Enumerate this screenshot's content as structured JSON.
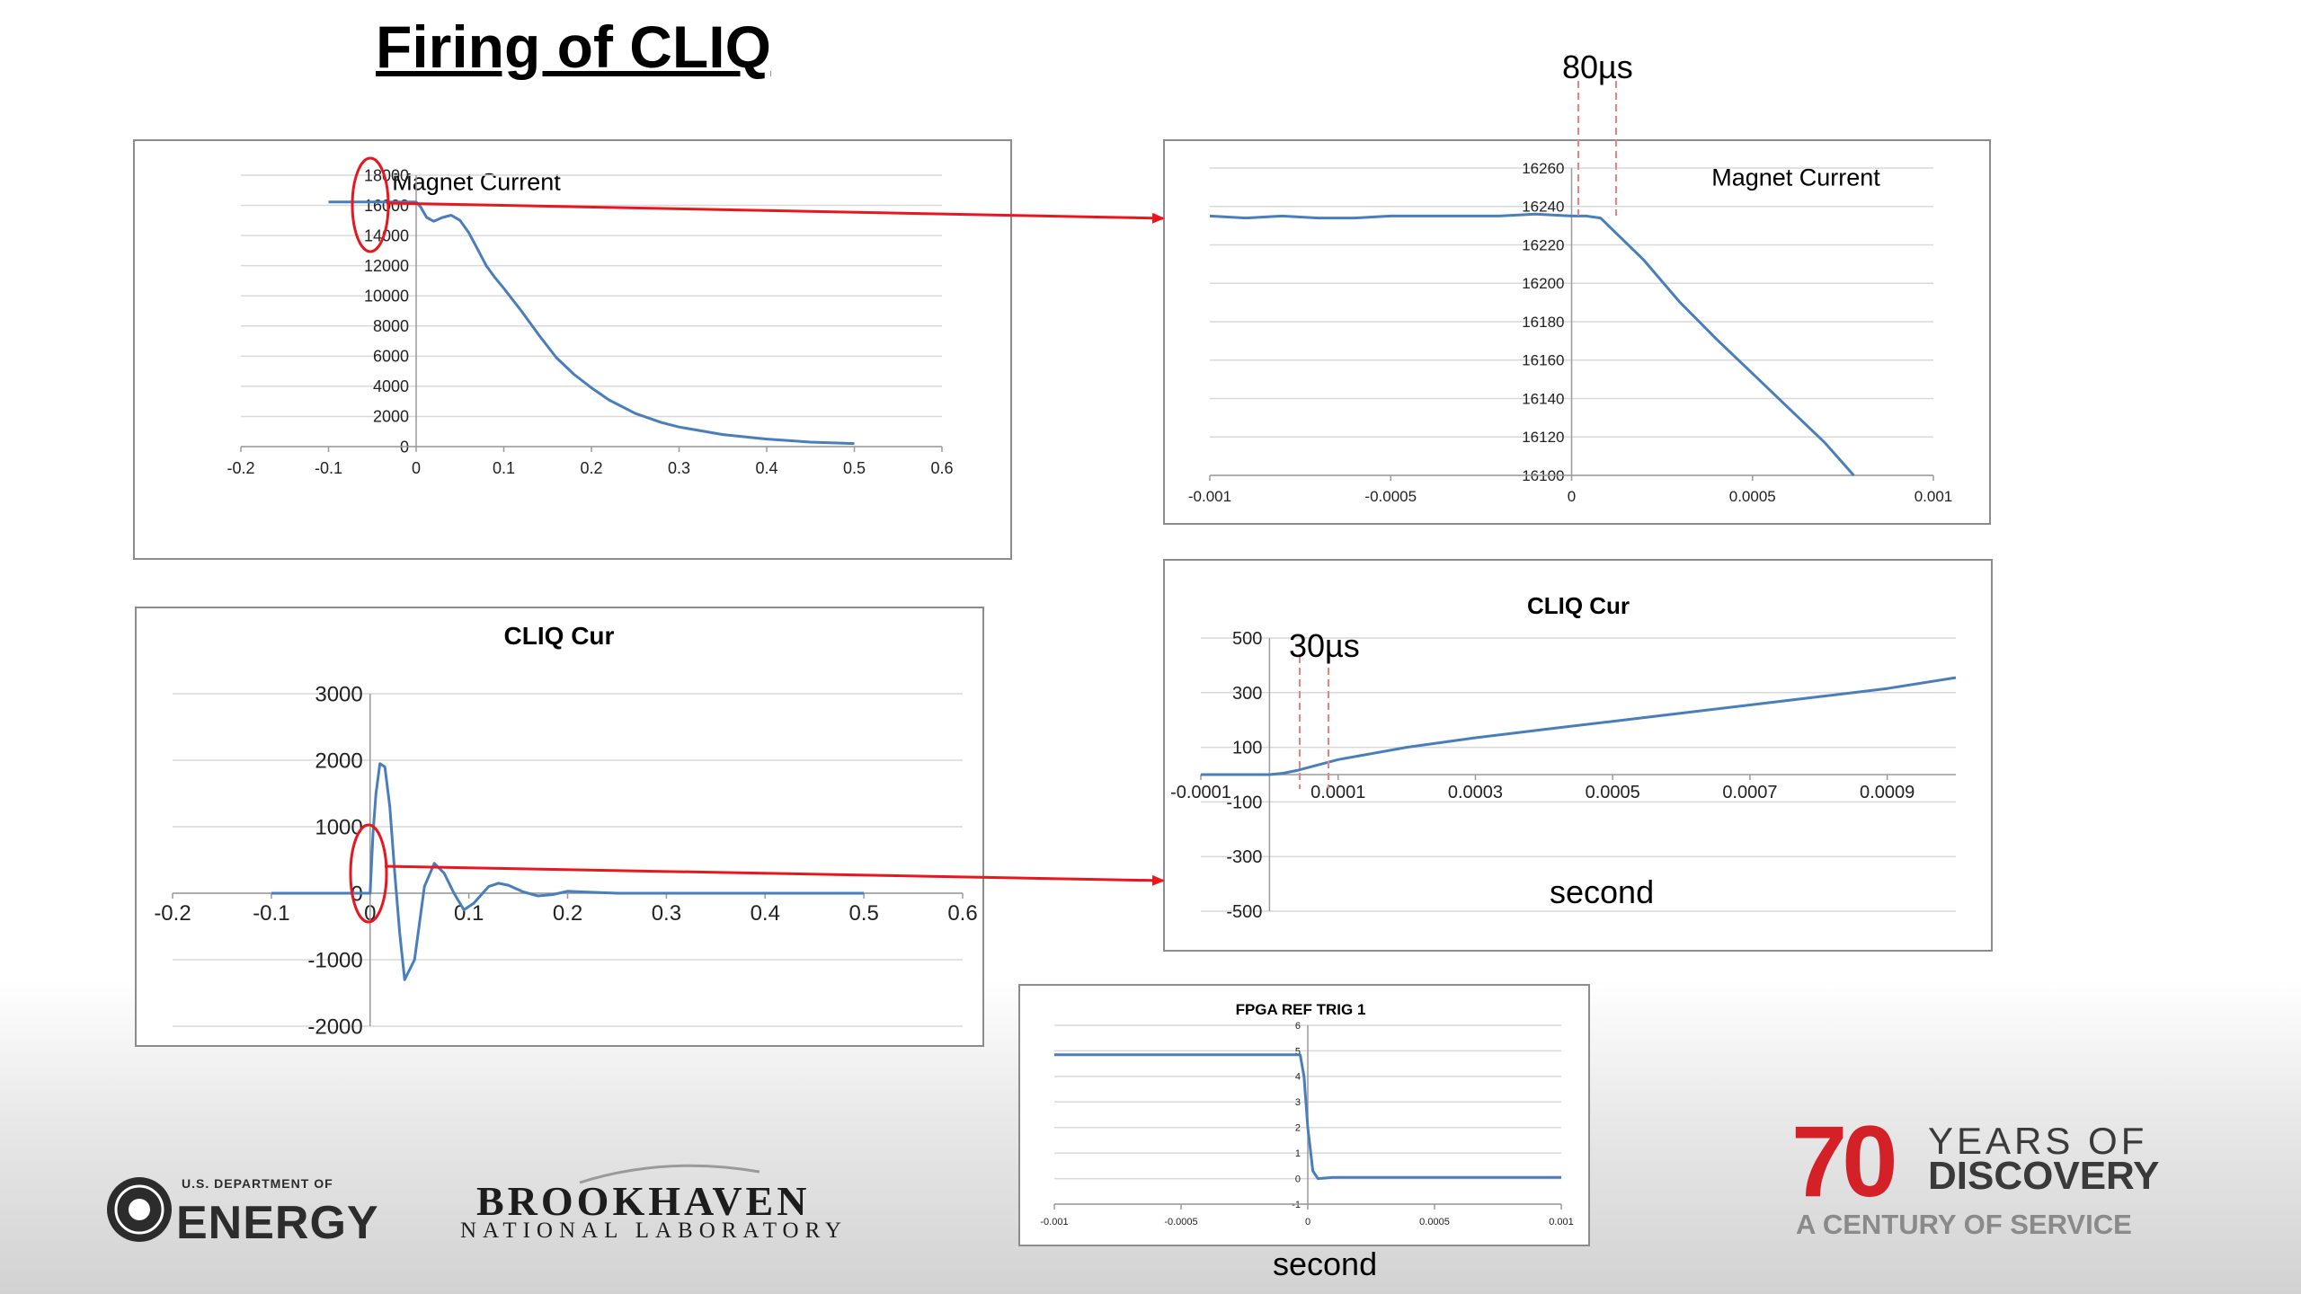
{
  "slide": {
    "title": "Firing of CLIQ",
    "annotation_80us": "80µs",
    "annotation_30us": "30µs",
    "second_label_cliq": "second",
    "second_label_fpga": "second"
  },
  "logos": {
    "doe_small": "U.S. DEPARTMENT OF",
    "doe_main": "ENERGY",
    "bnl_main": "BROOKHAVEN",
    "bnl_sub": "NATIONAL LABORATORY",
    "anniv_number": "70",
    "anniv_line1": "YEARS OF",
    "anniv_line2": "DISCOVERY",
    "anniv_line3": "A CENTURY OF SERVICE"
  },
  "colors": {
    "series": "#4a7ebb",
    "annotation_red": "#e8171f",
    "grid": "#d9d9d9"
  },
  "chart_data": [
    {
      "id": "magnet-current-full",
      "type": "line",
      "title": "Magnet Current",
      "xlim": [
        -0.2,
        0.6
      ],
      "ylim": [
        0,
        18000
      ],
      "x_ticks": [
        -0.2,
        -0.1,
        0,
        0.1,
        0.2,
        0.3,
        0.4,
        0.5,
        0.6
      ],
      "x_tick_labels": [
        "-0.2",
        "-0.1",
        "0",
        "0.1",
        "0.2",
        "0.3",
        "0.4",
        "0.5",
        "0.6"
      ],
      "y_ticks": [
        0,
        2000,
        4000,
        6000,
        8000,
        10000,
        12000,
        14000,
        16000,
        18000
      ],
      "y_tick_labels": [
        "0",
        "2000",
        "4000",
        "6000",
        "8000",
        "10000",
        "12000",
        "14000",
        "16000",
        "18000"
      ],
      "grid": true,
      "series": [
        {
          "x": [
            -0.1,
            -0.05,
            0,
            0.005,
            0.012,
            0.02,
            0.03,
            0.04,
            0.05,
            0.06,
            0.07,
            0.08,
            0.09,
            0.1,
            0.12,
            0.14,
            0.16,
            0.18,
            0.2,
            0.22,
            0.25,
            0.28,
            0.3,
            0.35,
            0.4,
            0.45,
            0.5
          ],
          "y": [
            16230,
            16230,
            16230,
            15900,
            15200,
            14950,
            15200,
            15350,
            15000,
            14200,
            13100,
            12000,
            11200,
            10500,
            9000,
            7400,
            5900,
            4800,
            3900,
            3100,
            2200,
            1600,
            1300,
            800,
            500,
            300,
            200
          ]
        }
      ]
    },
    {
      "id": "magnet-current-zoom",
      "type": "line",
      "title": "Magnet Current",
      "xlim": [
        -0.001,
        0.001
      ],
      "ylim": [
        16100,
        16260
      ],
      "x_ticks": [
        -0.001,
        -0.0005,
        0,
        0.0005,
        0.001
      ],
      "x_tick_labels": [
        "-0.001",
        "-0.0005",
        "0",
        "0.0005",
        "0.001"
      ],
      "y_ticks": [
        16100,
        16120,
        16140,
        16160,
        16180,
        16200,
        16220,
        16240,
        16260
      ],
      "y_tick_labels": [
        "16100",
        "16120",
        "16140",
        "16160",
        "16180",
        "16200",
        "16220",
        "16240",
        "16260"
      ],
      "grid": true,
      "series": [
        {
          "x": [
            -0.001,
            -0.0009,
            -0.0008,
            -0.0007,
            -0.0006,
            -0.0005,
            -0.0004,
            -0.0003,
            -0.0002,
            -0.0001,
            0,
            4e-05,
            8e-05,
            0.0002,
            0.0003,
            0.0004,
            0.0005,
            0.0006,
            0.0007,
            0.00078
          ],
          "y": [
            16235,
            16234,
            16235,
            16234,
            16234,
            16235,
            16235,
            16235,
            16235,
            16236,
            16235,
            16235,
            16234,
            16212,
            16190,
            16171,
            16153,
            16135,
            16117,
            16100
          ]
        }
      ]
    },
    {
      "id": "cliq-cur-full",
      "type": "line",
      "title": "CLIQ Cur",
      "xlim": [
        -0.2,
        0.6
      ],
      "ylim": [
        -2000,
        3000
      ],
      "x_ticks": [
        -0.2,
        -0.1,
        0,
        0.1,
        0.2,
        0.3,
        0.4,
        0.5,
        0.6
      ],
      "x_tick_labels": [
        "-0.2",
        "-0.1",
        "0",
        "0.1",
        "0.2",
        "0.3",
        "0.4",
        "0.5",
        "0.6"
      ],
      "y_ticks": [
        -2000,
        -1000,
        0,
        1000,
        2000,
        3000
      ],
      "y_tick_labels": [
        "-2000",
        "-1000",
        "0",
        "1000",
        "2000",
        "3000"
      ],
      "grid": true,
      "series": [
        {
          "x": [
            -0.1,
            -0.05,
            0,
            0.003,
            0.006,
            0.01,
            0.015,
            0.02,
            0.025,
            0.03,
            0.035,
            0.045,
            0.055,
            0.065,
            0.075,
            0.085,
            0.095,
            0.105,
            0.12,
            0.13,
            0.14,
            0.155,
            0.17,
            0.185,
            0.2,
            0.215,
            0.25,
            0.3,
            0.4,
            0.5
          ],
          "y": [
            0,
            0,
            0,
            900,
            1500,
            1950,
            1900,
            1300,
            300,
            -600,
            -1300,
            -1000,
            100,
            450,
            300,
            0,
            -250,
            -150,
            100,
            150,
            120,
            20,
            -40,
            -20,
            30,
            20,
            0,
            0,
            0,
            0
          ]
        }
      ]
    },
    {
      "id": "cliq-cur-zoom",
      "type": "line",
      "title": "CLIQ Cur",
      "xlim": [
        -0.0001,
        0.001
      ],
      "ylim": [
        -500,
        500
      ],
      "x_ticks": [
        -0.0001,
        0.0001,
        0.0003,
        0.0005,
        0.0007,
        0.0009
      ],
      "x_tick_labels": [
        "-0.0001",
        "0.0001",
        "0.0003",
        "0.0005",
        "0.0007",
        "0.0009"
      ],
      "y_ticks": [
        -500,
        -300,
        -100,
        100,
        300,
        500
      ],
      "y_tick_labels": [
        "-500",
        "-300",
        "-100",
        "100",
        "300",
        "500"
      ],
      "grid": true,
      "series": [
        {
          "x": [
            -0.0001,
            -5e-05,
            0,
            2e-05,
            4e-05,
            0.0001,
            0.0002,
            0.0003,
            0.0004,
            0.0005,
            0.0006,
            0.0007,
            0.0008,
            0.0009,
            0.001
          ],
          "y": [
            0,
            0,
            0,
            5,
            15,
            55,
            100,
            135,
            165,
            195,
            225,
            255,
            285,
            315,
            355
          ]
        }
      ]
    },
    {
      "id": "fpga-ref-trig",
      "type": "line",
      "title": "FPGA REF TRIG 1",
      "xlim": [
        -0.001,
        0.001
      ],
      "ylim": [
        -1,
        6
      ],
      "x_ticks": [
        -0.001,
        -0.0005,
        0,
        0.0005,
        0.001
      ],
      "x_tick_labels": [
        "-0.001",
        "-0.0005",
        "0",
        "0.0005",
        "0.001"
      ],
      "y_ticks": [
        -1,
        0,
        1,
        2,
        3,
        4,
        5,
        6
      ],
      "y_tick_labels": [
        "-1",
        "0",
        "1",
        "2",
        "3",
        "4",
        "5",
        "6"
      ],
      "grid": true,
      "series": [
        {
          "x": [
            -0.001,
            -0.0005,
            -3e-05,
            -1.5e-05,
            0,
            2e-05,
            4e-05,
            0.0001,
            0.0005,
            0.001
          ],
          "y": [
            4.85,
            4.85,
            4.85,
            4.0,
            2.0,
            0.3,
            0.0,
            0.05,
            0.05,
            0.05
          ]
        }
      ]
    }
  ]
}
